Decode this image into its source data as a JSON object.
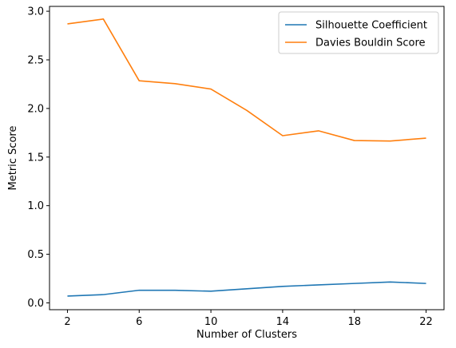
{
  "chart_data": {
    "type": "line",
    "title": "",
    "xlabel": "Number of Clusters",
    "ylabel": "Metric Score",
    "x": [
      2,
      4,
      6,
      8,
      10,
      12,
      14,
      16,
      18,
      20,
      22
    ],
    "xticks": [
      2,
      6,
      10,
      14,
      18,
      22
    ],
    "xtick_labels": [
      "2",
      "6",
      "10",
      "14",
      "18",
      "22"
    ],
    "yticks": [
      0.0,
      0.5,
      1.0,
      1.5,
      2.0,
      2.5,
      3.0
    ],
    "ytick_labels": [
      "0.0",
      "0.5",
      "1.0",
      "1.5",
      "2.0",
      "2.5",
      "3.0"
    ],
    "xlim": [
      1,
      23
    ],
    "ylim": [
      -0.07,
      3.05
    ],
    "grid": false,
    "legend_position": "top-right",
    "series": [
      {
        "name": "Silhouette Coefficient",
        "color": "#1f77b4",
        "values": [
          0.07,
          0.085,
          0.13,
          0.13,
          0.12,
          0.145,
          0.17,
          0.185,
          0.2,
          0.215,
          0.2
        ]
      },
      {
        "name": "Davies Bouldin Score",
        "color": "#ff7f0e",
        "values": [
          2.87,
          2.92,
          2.285,
          2.255,
          2.2,
          1.98,
          1.72,
          1.77,
          1.67,
          1.665,
          1.695
        ]
      }
    ]
  }
}
